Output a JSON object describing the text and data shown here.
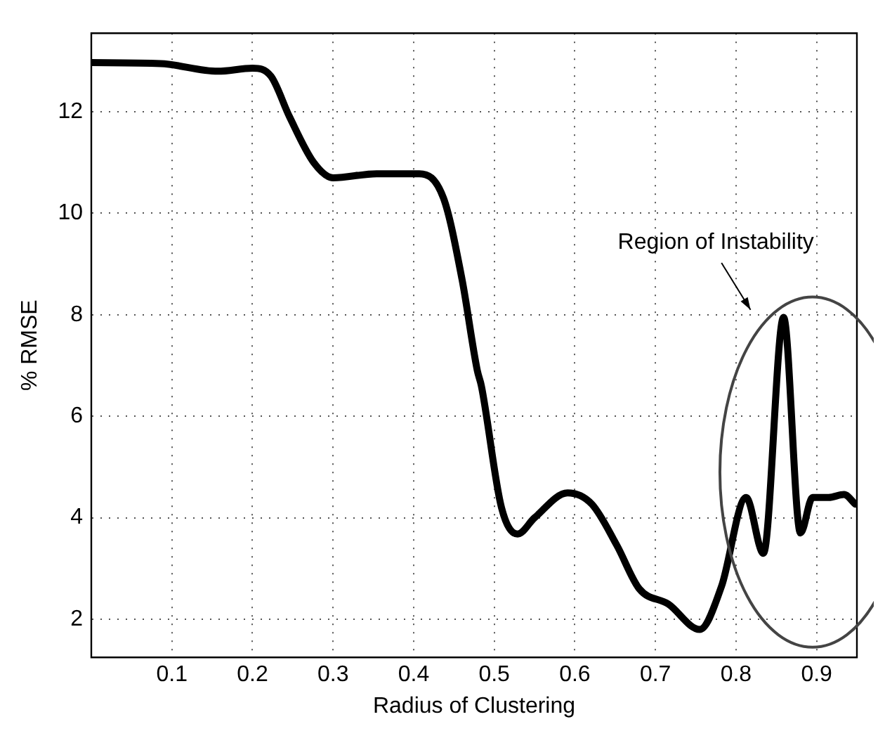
{
  "chart_data": {
    "type": "line",
    "xlabel": "Radius of Clustering",
    "ylabel": "% RMSE",
    "x": [
      0,
      0.086,
      0.157,
      0.2,
      0.223,
      0.246,
      0.276,
      0.3,
      0.354,
      0.407,
      0.437,
      0.46,
      0.479,
      0.484,
      0.509,
      0.529,
      0.55,
      0.591,
      0.621,
      0.652,
      0.68,
      0.716,
      0.755,
      0.782,
      0.8125,
      0.834,
      0.859,
      0.88,
      0.895,
      0.915,
      0.934,
      0.948
    ],
    "series": [
      {
        "color": "#000000",
        "values": [
          12.97,
          12.95,
          12.8,
          12.86,
          12.7,
          11.9,
          11.0,
          10.7,
          10.78,
          10.78,
          10.3,
          8.7,
          6.9,
          6.6,
          4.2,
          3.68,
          4.0,
          4.49,
          4.27,
          3.46,
          2.6,
          2.3,
          1.8,
          2.65,
          4.4,
          3.3,
          7.95,
          3.7,
          4.4,
          4.4,
          4.46,
          4.27
        ]
      }
    ],
    "xlim": [
      0,
      0.95
    ],
    "ylim": [
      1.25,
      13.55
    ],
    "xticks": [
      0.1,
      0.2,
      0.3,
      0.4,
      0.5,
      0.6,
      0.7,
      0.8,
      0.9
    ],
    "yticks": [
      2,
      4,
      6,
      8,
      10,
      12
    ],
    "grid": true,
    "legend": false,
    "marker": "none",
    "line_style": "solid",
    "annotations": [
      "Region of Instability"
    ]
  }
}
